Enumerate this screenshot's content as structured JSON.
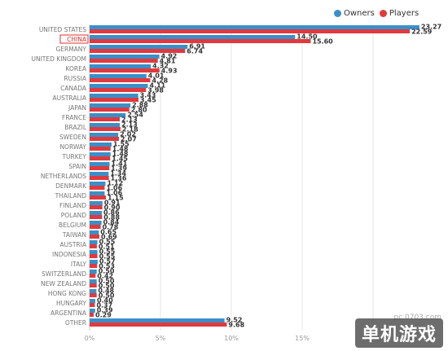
{
  "chart_data": {
    "type": "bar",
    "orientation": "horizontal",
    "categories": [
      "UNITED STATES",
      "CHINA",
      "GERMANY",
      "UNITED KINGDOM",
      "KOREA",
      "RUSSIA",
      "CANADA",
      "AUSTRALIA",
      "JAPAN",
      "FRANCE",
      "BRAZIL",
      "SWEDEN",
      "NORWAY",
      "TURKEY",
      "SPAIN",
      "NETHERLANDS",
      "DENMARK",
      "THAILAND",
      "FINLAND",
      "POLAND",
      "BELGIUM",
      "TAIWAN",
      "AUSTRIA",
      "INDONESIA",
      "ITALY",
      "SWITZERLAND",
      "NEW ZEALAND",
      "HONG KONG",
      "HUNGARY",
      "ARGENTINA",
      "OTHER"
    ],
    "series": [
      {
        "name": "Owners",
        "color": "#3b8fc8",
        "values": [
          23.27,
          14.5,
          6.91,
          4.92,
          4.32,
          4.01,
          4.11,
          3.43,
          2.88,
          2.54,
          2.13,
          2.02,
          1.55,
          1.48,
          1.41,
          1.34,
          1.12,
          1.06,
          0.91,
          0.86,
          0.84,
          0.65,
          0.55,
          0.55,
          0.57,
          0.5,
          0.5,
          0.48,
          0.4,
          0.39,
          9.52
        ]
      },
      {
        "name": "Players",
        "color": "#e0393e",
        "values": [
          22.59,
          15.6,
          6.74,
          4.81,
          4.93,
          4.28,
          3.98,
          3.45,
          2.8,
          2.13,
          2.18,
          2.07,
          1.48,
          1.45,
          1.39,
          1.36,
          1.06,
          1.15,
          0.9,
          0.88,
          0.78,
          0.69,
          0.51,
          0.55,
          0.53,
          0.42,
          0.5,
          0.5,
          0.37,
          0.29,
          9.68
        ]
      }
    ],
    "xlim": [
      0,
      25
    ],
    "xticks": [
      "0%",
      "5%",
      "10%",
      "15%",
      "20%"
    ],
    "xtick_values": [
      0,
      5,
      10,
      15,
      20
    ],
    "highlight_category": "CHINA",
    "legend_position": "top-right",
    "grid": true
  },
  "watermark": {
    "text": "单机游戏",
    "url": "pc.0703.com"
  }
}
